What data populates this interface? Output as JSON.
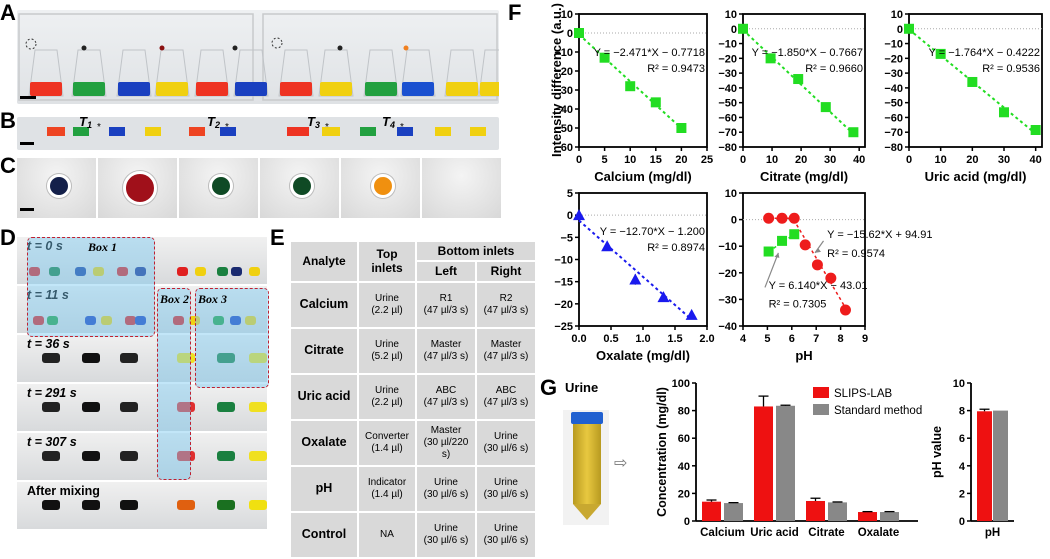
{
  "panels": {
    "A": {
      "label": "A"
    },
    "B": {
      "label": "B",
      "thresholds": [
        "T1",
        "T2",
        "T3",
        "T4"
      ],
      "asterisk": "*"
    },
    "C": {
      "label": "C",
      "well_colors": [
        "#14204a",
        "#a0101a",
        "#0f4a25",
        "#0f4a25",
        "#f0900f",
        "#e8e8e8"
      ]
    },
    "D": {
      "label": "D",
      "rows": [
        "t = 0 s",
        "t = 11 s",
        "t = 36 s",
        "t = 291 s",
        "t = 307 s",
        "After mixing"
      ],
      "boxes": [
        "Box 1",
        "Box 2",
        "Box 3"
      ]
    },
    "E": {
      "label": "E"
    },
    "F": {
      "label": "F"
    },
    "G": {
      "label": "G",
      "urine_label": "Urine",
      "arrow": "⇨"
    }
  },
  "table": {
    "headers": {
      "analyte": "Analyte",
      "top": "Top inlets",
      "bottom": "Bottom inlets",
      "left": "Left",
      "right": "Right"
    },
    "rows": [
      {
        "analyte": "Calcium",
        "top": [
          "Urine",
          "(2.2 µl)"
        ],
        "left": [
          "R1",
          "(47 µl/3 s)"
        ],
        "right": [
          "R2",
          "(47 µl/3 s)"
        ]
      },
      {
        "analyte": "Citrate",
        "top": [
          "Urine",
          "(5.2 µl)"
        ],
        "left": [
          "Master",
          "(47 µl/3 s)"
        ],
        "right": [
          "Master",
          "(47 µl/3 s)"
        ]
      },
      {
        "analyte": "Uric acid",
        "top": [
          "Urine",
          "(2.2 µl)"
        ],
        "left": [
          "ABC",
          "(47 µl/3 s)"
        ],
        "right": [
          "ABC",
          "(47 µl/3 s)"
        ]
      },
      {
        "analyte": "Oxalate",
        "top": [
          "Converter",
          "(1.4 µl)"
        ],
        "left": [
          "Master",
          "(30 µl/220",
          "s)"
        ],
        "right": [
          "Urine",
          "(30 µl/6 s)"
        ]
      },
      {
        "analyte": "pH",
        "top": [
          "Indicator",
          "(1.4 µl)"
        ],
        "left": [
          "Urine",
          "(30 µl/6 s)"
        ],
        "right": [
          "Urine",
          "(30 µl/6 s)"
        ]
      },
      {
        "analyte": "Control",
        "top": [
          "NA"
        ],
        "left": [
          "Urine",
          "(30 µl/6 s)"
        ],
        "right": [
          "Urine",
          "(30 µl/6 s)"
        ]
      }
    ]
  },
  "chart_data": [
    {
      "id": "calcium",
      "type": "scatter",
      "xlabel": "Calcium (mg/dl)",
      "ylabel": "Intensity difference (a.u.)",
      "xlim": [
        0,
        25
      ],
      "xticks": [
        0,
        5,
        10,
        15,
        20,
        25
      ],
      "ylim": [
        -60,
        10
      ],
      "yticks": [
        10,
        0,
        -10,
        -20,
        -30,
        -40,
        -50,
        -60
      ],
      "color": "#22dd22",
      "marker": "square",
      "x": [
        0,
        5,
        10,
        15,
        20
      ],
      "y": [
        0,
        -13,
        -28,
        -36.5,
        -50
      ],
      "err": [
        0,
        0,
        0,
        0,
        1.5
      ],
      "fit": {
        "slope": -2.471,
        "intercept": -0.7718,
        "x": [
          0,
          20
        ]
      },
      "equation": "Y = −2.471*X − 0.7718",
      "r2": "R² = 0.9473"
    },
    {
      "id": "citrate",
      "type": "scatter",
      "xlabel": "Citrate (mg/dl)",
      "ylabel": "",
      "xlim": [
        0,
        42
      ],
      "xticks": [
        0,
        10,
        20,
        30,
        40
      ],
      "ylim": [
        -80,
        10
      ],
      "yticks": [
        10,
        0,
        -10,
        -20,
        -30,
        -40,
        -50,
        -60,
        -70,
        -80
      ],
      "color": "#22dd22",
      "marker": "square",
      "x": [
        0,
        9.5,
        19,
        28.5,
        38
      ],
      "y": [
        0,
        -20,
        -34,
        -53,
        -70
      ],
      "err": [
        0,
        0,
        0,
        3,
        0
      ],
      "fit": {
        "slope": -1.85,
        "intercept": -0.7667,
        "x": [
          0,
          38
        ]
      },
      "equation": "Y = −1.850*X − 0.7667",
      "r2": "R² = 0.9660"
    },
    {
      "id": "uric",
      "type": "scatter",
      "xlabel": "Uric acid (mg/dl)",
      "ylabel": "",
      "xlim": [
        0,
        42
      ],
      "xticks": [
        0,
        10,
        20,
        30,
        40
      ],
      "ylim": [
        -80,
        10
      ],
      "yticks": [
        10,
        0,
        -10,
        -20,
        -30,
        -40,
        -50,
        -60,
        -70,
        -80
      ],
      "color": "#22dd22",
      "marker": "square",
      "x": [
        0,
        10,
        20,
        30,
        40
      ],
      "y": [
        0,
        -17,
        -36,
        -56.5,
        -68.5
      ],
      "err": [
        0,
        0,
        0,
        0,
        0
      ],
      "fit": {
        "slope": -1.764,
        "intercept": -0.4222,
        "x": [
          0,
          40
        ]
      },
      "equation": "Y = −1.764*X − 0.4222",
      "r2": "R² = 0.9536"
    },
    {
      "id": "oxalate",
      "type": "scatter",
      "xlabel": "Oxalate (mg/dl)",
      "ylabel": "",
      "xlim": [
        0,
        2.0
      ],
      "xticks": [
        "0.0",
        "0.5",
        "1.0",
        "1.5",
        "2.0"
      ],
      "ylim": [
        -25,
        5
      ],
      "yticks": [
        5,
        0,
        -5,
        -10,
        -15,
        -20,
        -25
      ],
      "color": "#1a1aee",
      "marker": "triangle",
      "x": [
        0,
        0.44,
        0.88,
        1.32,
        1.76
      ],
      "y": [
        0,
        -7,
        -14.5,
        -18.5,
        -22.5
      ],
      "err": [
        0,
        0,
        1.2,
        0,
        0
      ],
      "fit": {
        "slope": -12.7,
        "intercept": -1.2,
        "x": [
          0,
          1.76
        ]
      },
      "equation": "Y = −12.70*X − 1.200",
      "r2": "R² = 0.8974"
    },
    {
      "id": "ph",
      "type": "scatter",
      "xlabel": "pH",
      "ylabel": "",
      "xlim": [
        4,
        9
      ],
      "xticks": [
        4,
        5,
        6,
        7,
        8,
        9
      ],
      "ylim": [
        -40,
        10
      ],
      "yticks": [
        10,
        0,
        -10,
        -20,
        -30,
        -40
      ],
      "series": [
        {
          "name": "red",
          "color": "#ee1c1c",
          "marker": "circle",
          "x": [
            5.05,
            5.6,
            6.1,
            6.55,
            7.05,
            7.6,
            8.2
          ],
          "y": [
            0.5,
            0.5,
            0.5,
            -9.5,
            -17,
            -22,
            -34
          ],
          "fit": {
            "slope": -15.62,
            "intercept": 94.91,
            "x": [
              6.2,
              8.2
            ]
          },
          "flat": [
            5.05,
            6.1
          ]
        },
        {
          "name": "green",
          "color": "#22dd22",
          "marker": "square",
          "x": [
            5.05,
            5.6,
            6.1
          ],
          "y": [
            -12,
            -8,
            -5.5
          ],
          "fit": {
            "slope": 6.14,
            "intercept": -43.01,
            "x": [
              5.05,
              6.1
            ]
          }
        }
      ],
      "equation_red": "Y = −15.62*X + 94.91",
      "r2_red": "R² = 0.9574",
      "equation_green": "Y = 6.140*X − 43.01",
      "r2_green": "R² = 0.7305"
    },
    {
      "id": "concentration",
      "type": "bar",
      "ylabel": "Concentration (mg/dl)",
      "categories": [
        "Calcium",
        "Uric acid",
        "Citrate",
        "Oxalate"
      ],
      "ylim": [
        0,
        100
      ],
      "yticks": [
        0,
        20,
        40,
        60,
        80,
        100
      ],
      "series": [
        {
          "name": "SLIPS-LAB",
          "color": "#ee1111",
          "values": [
            14,
            83,
            14.5,
            6.5
          ],
          "err": [
            1.2,
            7.5,
            2,
            0.3
          ]
        },
        {
          "name": "Standard method",
          "color": "#888888",
          "values": [
            13,
            83.5,
            13.5,
            6.5
          ],
          "err": [
            0.3,
            0.4,
            0.3,
            0.3
          ]
        }
      ],
      "legend": "top-right"
    },
    {
      "id": "ph_value",
      "type": "bar",
      "ylabel": "pH value",
      "categories": [
        "pH"
      ],
      "ylim": [
        0,
        10
      ],
      "yticks": [
        0,
        2,
        4,
        6,
        8,
        10
      ],
      "series": [
        {
          "name": "SLIPS-LAB",
          "color": "#ee1111",
          "values": [
            7.95
          ],
          "err": [
            0.15
          ]
        },
        {
          "name": "Standard method",
          "color": "#888888",
          "values": [
            8.0
          ],
          "err": [
            0
          ]
        }
      ]
    }
  ]
}
